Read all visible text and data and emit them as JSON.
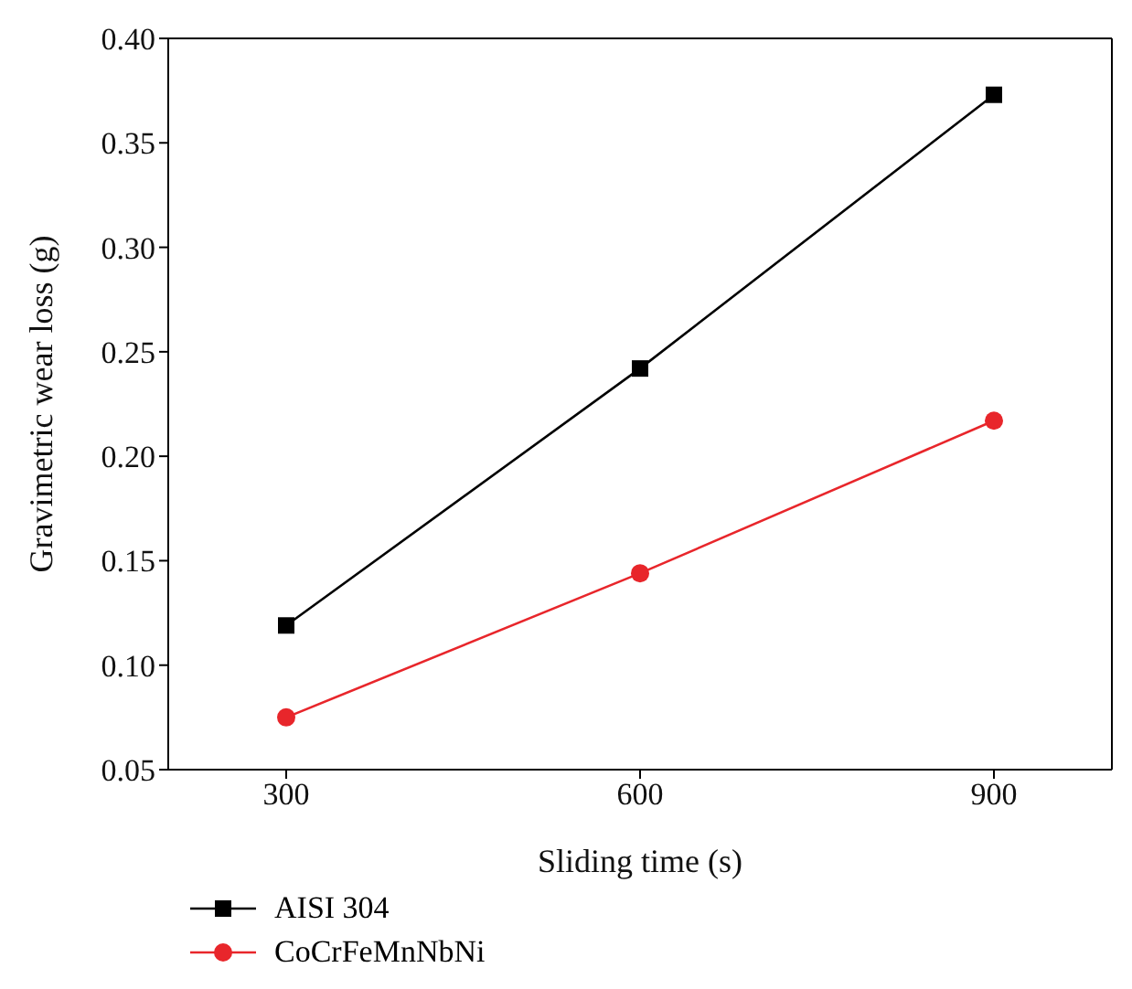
{
  "chart_data": {
    "type": "line",
    "xlabel": "Sliding time (s)",
    "ylabel": "Gravimetric wear loss (g)",
    "x": [
      300,
      600,
      900
    ],
    "series": [
      {
        "name": "AISI 304",
        "color": "#000000",
        "marker": "square",
        "values": [
          0.119,
          0.242,
          0.373
        ]
      },
      {
        "name": "CoCrFeMnNbNi",
        "color": "#e8262b",
        "marker": "circle",
        "values": [
          0.075,
          0.144,
          0.217
        ]
      }
    ],
    "xlim": [
      200,
      1000
    ],
    "xticks": [
      300,
      600,
      900
    ],
    "ylim": [
      0.05,
      0.4
    ],
    "yticks": [
      0.05,
      {
        "value": 0.1,
        "label": "0.10"
      },
      0.15,
      {
        "value": 0.2,
        "label": "0.20"
      },
      0.25,
      {
        "value": 0.3,
        "label": "0.30"
      },
      0.35,
      {
        "value": 0.4,
        "label": "0.40"
      }
    ],
    "grid": false,
    "legend": "bottom left"
  }
}
